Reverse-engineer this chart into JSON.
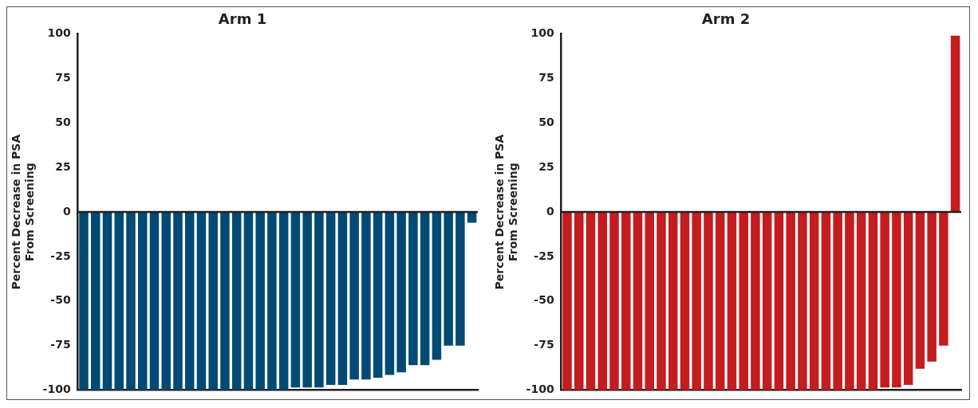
{
  "chart_data": [
    {
      "type": "bar",
      "title": "Arm 1",
      "ylabel": "Percent Decrease in PSA\nFrom Screening",
      "categories": [
        null,
        null,
        null,
        null,
        null,
        null,
        null,
        null,
        null,
        null,
        null,
        null,
        null,
        null,
        null,
        null,
        null,
        null,
        null,
        null,
        null,
        null,
        null,
        null,
        null,
        null,
        null,
        null,
        null,
        null,
        null,
        null,
        null,
        null
      ],
      "values": [
        -100,
        -100,
        -100,
        -100,
        -100,
        -100,
        -100,
        -100,
        -100,
        -100,
        -100,
        -100,
        -100,
        -100,
        -100,
        -100,
        -100,
        -100,
        -98.5,
        -98.5,
        -98.5,
        -97,
        -97,
        -94,
        -94,
        -93,
        -91.5,
        -90,
        -86,
        -86,
        -83,
        -75,
        -75,
        -6
      ],
      "color": "#004a73",
      "ylim": [
        -100,
        100
      ],
      "yticks": [
        -100,
        -75,
        -50,
        -25,
        0,
        25,
        50,
        75,
        100
      ],
      "tick_labels": "y",
      "ref_lines": [
        {
          "axis": "y",
          "value": 0
        }
      ]
    },
    {
      "type": "bar",
      "title": "Arm 2",
      "ylabel": "Percent Decrease in PSA\nFrom Screening",
      "categories": [
        null,
        null,
        null,
        null,
        null,
        null,
        null,
        null,
        null,
        null,
        null,
        null,
        null,
        null,
        null,
        null,
        null,
        null,
        null,
        null,
        null,
        null,
        null,
        null,
        null,
        null,
        null,
        null,
        null,
        null,
        null,
        null,
        null,
        null
      ],
      "values": [
        -100,
        -100,
        -100,
        -100,
        -100,
        -100,
        -100,
        -100,
        -100,
        -100,
        -100,
        -100,
        -100,
        -100,
        -100,
        -100,
        -100,
        -100,
        -100,
        -100,
        -100,
        -100,
        -100,
        -100,
        -100,
        -100,
        -100,
        -98.5,
        -98.5,
        -97,
        -88,
        -84,
        -75,
        99
      ],
      "color": "#c41c1f",
      "ylim": [
        -100,
        100
      ],
      "yticks": [
        -100,
        -75,
        -50,
        -25,
        0,
        25,
        50,
        75,
        100
      ],
      "tick_labels": "y",
      "ref_lines": [
        {
          "axis": "y",
          "value": 0
        }
      ]
    }
  ]
}
